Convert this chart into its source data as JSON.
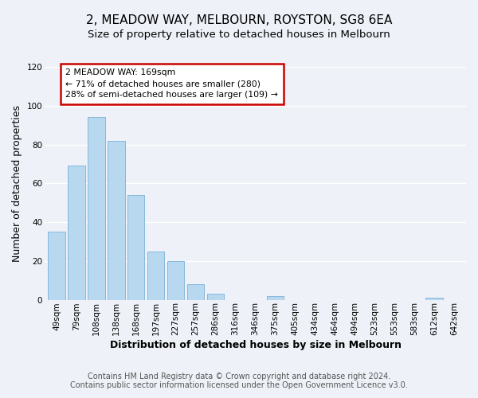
{
  "title": "2, MEADOW WAY, MELBOURN, ROYSTON, SG8 6EA",
  "subtitle": "Size of property relative to detached houses in Melbourn",
  "xlabel": "Distribution of detached houses by size in Melbourn",
  "ylabel": "Number of detached properties",
  "bar_color": "#b8d8f0",
  "bar_edge_color": "#7ab0d8",
  "categories": [
    "49sqm",
    "79sqm",
    "108sqm",
    "138sqm",
    "168sqm",
    "197sqm",
    "227sqm",
    "257sqm",
    "286sqm",
    "316sqm",
    "346sqm",
    "375sqm",
    "405sqm",
    "434sqm",
    "464sqm",
    "494sqm",
    "523sqm",
    "553sqm",
    "583sqm",
    "612sqm",
    "642sqm"
  ],
  "values": [
    35,
    69,
    94,
    82,
    54,
    25,
    20,
    8,
    3,
    0,
    0,
    2,
    0,
    0,
    0,
    0,
    0,
    0,
    0,
    1,
    0
  ],
  "ylim": [
    0,
    120
  ],
  "yticks": [
    0,
    20,
    40,
    60,
    80,
    100,
    120
  ],
  "annotation_title": "2 MEADOW WAY: 169sqm",
  "annotation_line1": "← 71% of detached houses are smaller (280)",
  "annotation_line2": "28% of semi-detached houses are larger (109) →",
  "annotation_box_color": "#ffffff",
  "annotation_box_edge_color": "#cc0000",
  "footer_line1": "Contains HM Land Registry data © Crown copyright and database right 2024.",
  "footer_line2": "Contains public sector information licensed under the Open Government Licence v3.0.",
  "background_color": "#eef2f8",
  "grid_color": "#ffffff",
  "title_fontsize": 11,
  "subtitle_fontsize": 9.5,
  "axis_label_fontsize": 9,
  "tick_fontsize": 7.5,
  "footer_fontsize": 7
}
